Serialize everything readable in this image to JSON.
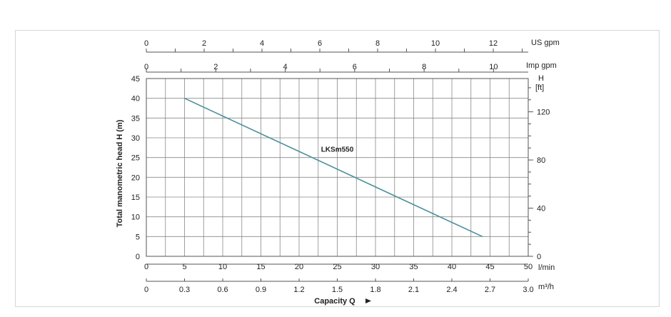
{
  "chart_data": {
    "type": "line",
    "ylabel": "Total manometric head H (m)",
    "xlabel": "Capacity Q",
    "y_axis": {
      "ticks": [
        0,
        5,
        10,
        15,
        20,
        25,
        30,
        35,
        40,
        45
      ],
      "ylim": [
        0,
        45
      ]
    },
    "right_axis": {
      "unit": "H",
      "unit2": "[ft]",
      "ticks": [
        0,
        40,
        80,
        120
      ],
      "conversion_m_per_ft": 0.3048
    },
    "x_axes": [
      {
        "key": "lmin",
        "unit": "l/min",
        "ticks": [
          "0",
          "5",
          "10",
          "15",
          "20",
          "25",
          "30",
          "35",
          "40",
          "45",
          "50"
        ],
        "range": [
          0,
          50
        ]
      },
      {
        "key": "m3h",
        "unit": "m³/h",
        "ticks": [
          "0",
          "0.3",
          "0.6",
          "0.9",
          "1.2",
          "1.5",
          "1.8",
          "2.1",
          "2.4",
          "2.7",
          "3.0"
        ],
        "range": [
          0,
          3.0
        ]
      },
      {
        "key": "impgpm",
        "unit": "Imp gpm",
        "ticks": [
          "0",
          "2",
          "4",
          "6",
          "8",
          "10"
        ],
        "per_lmin": 0.219969
      },
      {
        "key": "usgpm",
        "unit": "US gpm",
        "ticks": [
          "0",
          "2",
          "4",
          "6",
          "8",
          "10",
          "12"
        ],
        "per_lmin": 0.264172
      }
    ],
    "grid": true,
    "series": [
      {
        "name": "LKSm550",
        "color": "#4a8f9c",
        "x": [
          5,
          44
        ],
        "y": [
          40,
          5
        ]
      }
    ]
  }
}
